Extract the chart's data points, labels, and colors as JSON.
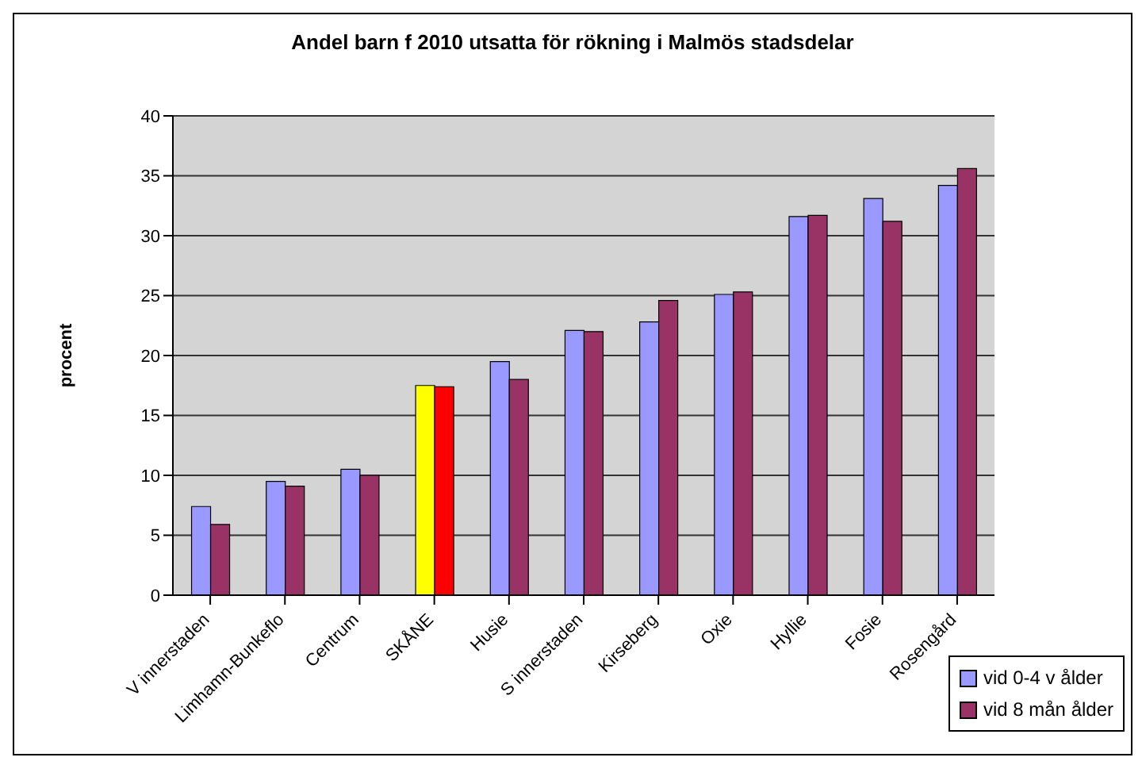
{
  "chart_data": {
    "type": "bar",
    "title": "Andel barn f 2010 utsatta för rökning i Malmös stadsdelar",
    "ylabel": "procent",
    "categories": [
      "V innerstaden",
      "Limhamn-Bunkeflo",
      "Centrum",
      "SKÅNE",
      "Husie",
      "S innerstaden",
      "Kirseberg",
      "Oxie",
      "Hyllie",
      "Fosie",
      "Rosengård"
    ],
    "series": [
      {
        "name": "vid 0-4 v ålder",
        "color": "#9999ff",
        "colors": [
          "#9999ff",
          "#9999ff",
          "#9999ff",
          "#ffff00",
          "#9999ff",
          "#9999ff",
          "#9999ff",
          "#9999ff",
          "#9999ff",
          "#9999ff",
          "#9999ff"
        ],
        "values": [
          7.4,
          9.5,
          10.5,
          17.5,
          19.5,
          22.1,
          22.8,
          25.1,
          31.6,
          33.1,
          34.2
        ]
      },
      {
        "name": "vid 8 mån ålder",
        "color": "#993366",
        "colors": [
          "#993366",
          "#993366",
          "#993366",
          "#ff0000",
          "#993366",
          "#993366",
          "#993366",
          "#993366",
          "#993366",
          "#993366",
          "#993366"
        ],
        "values": [
          5.9,
          9.1,
          10.0,
          17.4,
          18.0,
          22.0,
          24.6,
          25.3,
          31.7,
          31.2,
          35.6
        ]
      }
    ],
    "ylim": [
      0,
      40
    ],
    "yticks": [
      0,
      5,
      10,
      15,
      20,
      25,
      30,
      35,
      40
    ],
    "grid": "y",
    "legend": "bottom right"
  }
}
